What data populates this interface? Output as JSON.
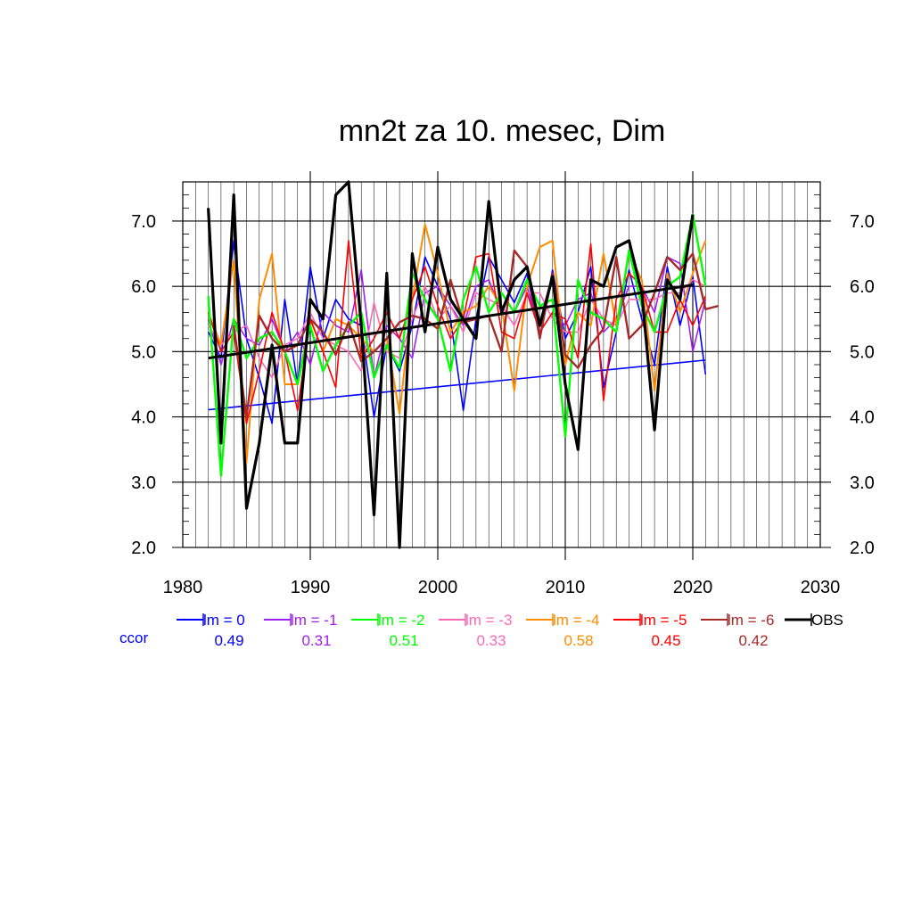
{
  "chart_data": {
    "type": "line",
    "title": "mn2t za 10. mesec, Dim",
    "xlim": [
      1980,
      2030
    ],
    "ylim": [
      2.0,
      7.6
    ],
    "xticks": [
      "1980",
      "1990",
      "2000",
      "2010",
      "2020",
      "2030"
    ],
    "yticks": [
      "2.0",
      "3.0",
      "4.0",
      "5.0",
      "6.0",
      "7.0"
    ],
    "grid": true,
    "legend_position": "bottom",
    "ccor_label": "ccor",
    "ccor_color": "#0000ff",
    "x": [
      1982,
      1983,
      1984,
      1985,
      1986,
      1987,
      1988,
      1989,
      1990,
      1991,
      1992,
      1993,
      1994,
      1995,
      1996,
      1997,
      1998,
      1999,
      2000,
      2001,
      2002,
      2003,
      2004,
      2005,
      2006,
      2007,
      2008,
      2009,
      2010,
      2011,
      2012,
      2013,
      2014,
      2015,
      2016,
      2017,
      2018,
      2019,
      2020,
      2021,
      2022
    ],
    "series": [
      {
        "name": "lm = 0",
        "ccor": "0.49",
        "color": "#0000ff",
        "width": 1.6,
        "values": [
          5.3,
          4.9,
          6.7,
          5.2,
          4.6,
          3.9,
          5.8,
          4.5,
          6.3,
          5.2,
          5.8,
          5.5,
          5.4,
          4.0,
          5.1,
          4.7,
          5.4,
          6.45,
          6.0,
          5.5,
          4.1,
          5.5,
          6.45,
          6.1,
          5.75,
          6.2,
          5.2,
          6.25,
          5.2,
          5.6,
          6.3,
          4.45,
          5.3,
          6.25,
          5.5,
          4.8,
          6.3,
          5.4,
          6.15,
          4.65,
          null
        ],
        "trend": [
          4.11,
          4.87
        ]
      },
      {
        "name": "lm = -1",
        "ccor": "0.31",
        "color": "#a020f0",
        "width": 1.6,
        "values": [
          5.5,
          4.8,
          5.5,
          5.2,
          5.1,
          5.5,
          5.0,
          5.3,
          4.8,
          5.6,
          5.4,
          5.3,
          6.25,
          4.6,
          5.4,
          5.2,
          4.9,
          5.9,
          6.0,
          5.7,
          5.4,
          6.0,
          6.1,
          5.6,
          5.6,
          6.0,
          5.3,
          5.6,
          5.4,
          5.8,
          5.9,
          5.3,
          5.5,
          6.0,
          6.0,
          5.6,
          6.45,
          6.35,
          5.0,
          5.8,
          null
        ]
      },
      {
        "name": "lm = -2",
        "ccor": "0.51",
        "color": "#00ff00",
        "width": 2.4,
        "values": [
          5.85,
          3.1,
          5.5,
          4.9,
          5.2,
          5.3,
          5.0,
          4.5,
          5.4,
          4.7,
          5.1,
          5.4,
          5.6,
          4.6,
          5.1,
          4.75,
          6.2,
          5.8,
          5.5,
          4.7,
          5.8,
          6.3,
          5.6,
          5.9,
          5.6,
          6.1,
          5.7,
          5.8,
          3.7,
          6.1,
          5.6,
          5.5,
          5.3,
          6.55,
          5.7,
          5.3,
          6.0,
          6.15,
          7.1,
          6.0,
          null
        ]
      },
      {
        "name": "lm = -3",
        "ccor": "0.33",
        "color": "#ff69b4",
        "width": 1.6,
        "values": [
          5.4,
          5.1,
          5.3,
          5.4,
          4.9,
          4.6,
          5.1,
          5.2,
          5.6,
          5.2,
          5.1,
          5.0,
          4.7,
          5.75,
          5.0,
          4.9,
          5.5,
          6.0,
          5.5,
          5.7,
          5.3,
          5.9,
          5.8,
          5.7,
          5.4,
          5.9,
          5.9,
          5.5,
          5.3,
          5.3,
          5.8,
          5.5,
          5.4,
          5.8,
          5.8,
          5.8,
          5.9,
          5.9,
          6.1,
          6.0,
          null
        ]
      },
      {
        "name": "lm = -4",
        "ccor": "0.58",
        "color": "#ff8c00",
        "width": 2.0,
        "values": [
          5.6,
          5.1,
          6.4,
          3.3,
          5.8,
          6.5,
          4.5,
          4.5,
          5.5,
          5.0,
          5.5,
          5.4,
          5.2,
          5.0,
          5.2,
          4.05,
          5.8,
          6.95,
          6.2,
          5.3,
          5.6,
          5.7,
          6.0,
          5.7,
          4.4,
          6.0,
          6.6,
          6.7,
          4.8,
          5.6,
          5.4,
          6.5,
          5.4,
          6.5,
          6.1,
          4.4,
          6.2,
          5.6,
          6.2,
          6.7,
          null
        ]
      },
      {
        "name": "lm = -5",
        "ccor": "0.45",
        "color": "#ff0000",
        "width": 1.6,
        "values": [
          5.6,
          5.0,
          5.3,
          3.9,
          4.7,
          5.6,
          5.0,
          4.1,
          5.5,
          5.0,
          4.45,
          6.7,
          4.9,
          5.2,
          5.6,
          5.2,
          5.8,
          6.3,
          5.7,
          5.2,
          5.5,
          6.45,
          6.5,
          5.3,
          5.2,
          5.9,
          5.3,
          5.6,
          5.5,
          4.9,
          6.65,
          4.25,
          5.8,
          6.2,
          6.0,
          5.3,
          5.3,
          5.8,
          5.4,
          5.85,
          null
        ]
      },
      {
        "name": "lm = -6",
        "ccor": "0.42",
        "color": "#a52a2a",
        "width": 2.4,
        "values": [
          null,
          null,
          5.4,
          4.0,
          5.55,
          5.2,
          5.0,
          5.1,
          5.5,
          5.3,
          4.95,
          5.45,
          4.85,
          5.0,
          5.2,
          5.45,
          5.55,
          5.5,
          5.35,
          6.1,
          5.45,
          5.5,
          5.55,
          5.0,
          6.55,
          6.3,
          5.2,
          6.2,
          4.95,
          4.75,
          5.1,
          5.35,
          6.45,
          5.2,
          5.4,
          5.9,
          6.45,
          6.25,
          6.5,
          5.65,
          5.7
        ]
      },
      {
        "name": "OBS",
        "ccor": "",
        "color": "#000000",
        "width": 3.2,
        "values": [
          7.2,
          3.6,
          7.4,
          2.6,
          3.6,
          5.1,
          3.6,
          3.6,
          5.8,
          5.5,
          7.4,
          7.6,
          5.4,
          2.5,
          6.2,
          2.0,
          6.5,
          5.3,
          6.6,
          5.8,
          5.5,
          5.2,
          7.3,
          5.6,
          6.1,
          6.3,
          5.4,
          6.15,
          4.5,
          3.5,
          6.1,
          6.0,
          6.6,
          6.7,
          5.9,
          3.8,
          6.1,
          5.8,
          7.1,
          null,
          null
        ],
        "trend": [
          4.9,
          6.02
        ]
      }
    ]
  }
}
